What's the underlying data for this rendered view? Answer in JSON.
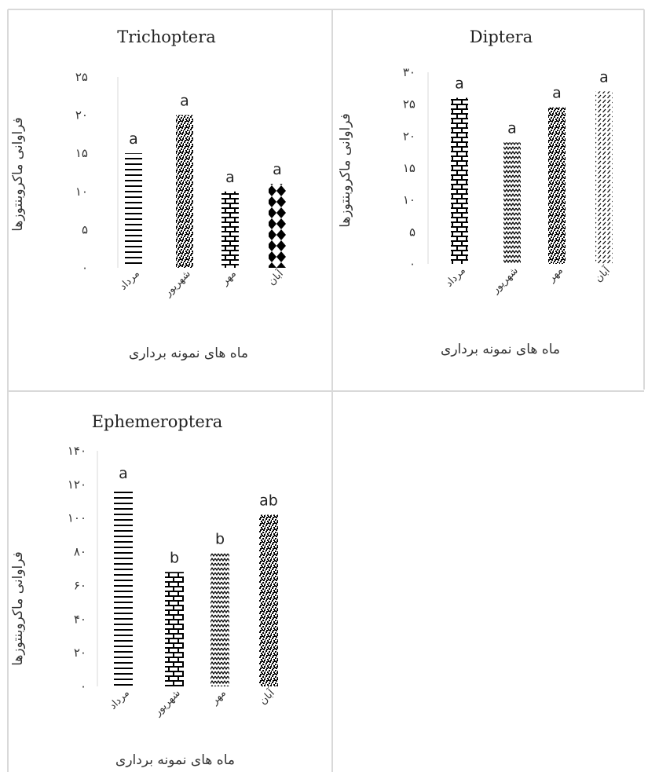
{
  "chart_data": [
    {
      "type": "bar",
      "title": "Trichoptera",
      "xlabel": "ماه های نمونه برداری",
      "ylabel": "فراوانی ماکروبنتوزها",
      "categories": [
        "مرداد",
        "شهریور",
        "مهر",
        "آبان"
      ],
      "values": [
        15,
        20,
        10,
        11
      ],
      "labels": [
        "a",
        "a",
        "a",
        "a"
      ],
      "patterns": [
        "hlines",
        "dots",
        "bricks",
        "diamonds"
      ],
      "ylim": [
        0,
        25
      ],
      "yticks": [
        0,
        5,
        10,
        15,
        20,
        25
      ],
      "ytick_labels": [
        "۰",
        "۵",
        "۱۰",
        "۱۵",
        "۲۰",
        "۲۵"
      ],
      "grid": false
    },
    {
      "type": "bar",
      "title": "Diptera",
      "xlabel": "ماه های نمونه برداری",
      "ylabel": "فراوانی ماکروبنتوزها",
      "categories": [
        "مرداد",
        "شهریور",
        "مهر",
        "آبان"
      ],
      "values": [
        26,
        19,
        24.5,
        27
      ],
      "labels": [
        "a",
        "a",
        "a",
        "a"
      ],
      "patterns": [
        "bricks",
        "zigzag",
        "dots",
        "diag"
      ],
      "ylim": [
        0,
        30
      ],
      "yticks": [
        0,
        5,
        10,
        15,
        20,
        25,
        30
      ],
      "ytick_labels": [
        "۰",
        "۵",
        "۱۰",
        "۱۵",
        "۲۰",
        "۲۵",
        "۳۰"
      ],
      "grid": false
    },
    {
      "type": "bar",
      "title": "Ephemeroptera",
      "xlabel": "ماه های نمونه برداری",
      "ylabel": "فراوانی ماکروبنتوزها",
      "categories": [
        "مرداد",
        "شهریور",
        "مهر",
        "آبان"
      ],
      "values": [
        118,
        68,
        79,
        102
      ],
      "labels": [
        "a",
        "b",
        "b",
        "ab"
      ],
      "patterns": [
        "hlines",
        "bricks",
        "zigzag",
        "dots"
      ],
      "ylim": [
        0,
        140
      ],
      "yticks": [
        0,
        20,
        40,
        60,
        80,
        100,
        120,
        140
      ],
      "ytick_labels": [
        "۰",
        "۲۰",
        "۴۰",
        "۶۰",
        "۸۰",
        "۱۰۰",
        "۱۲۰",
        "۱۴۰"
      ],
      "grid": false
    }
  ],
  "colors": {
    "bar_ink": "#000000",
    "bar_bg": "#ffffff",
    "panel_border": "#d9d9d9"
  }
}
